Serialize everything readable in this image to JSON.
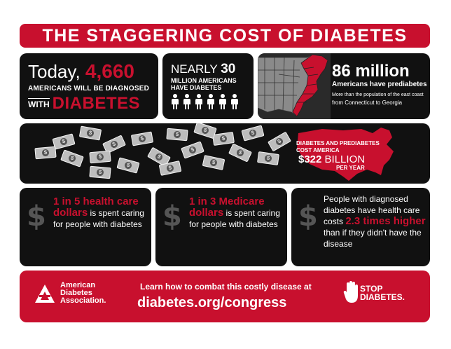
{
  "title": "THE STAGGERING COST OF DIABETES",
  "panel1": {
    "today": "Today,",
    "count": "4,660",
    "line2": "AMERICANS WILL BE DIAGNOSED",
    "with": "WITH",
    "diabetes": "DIABETES"
  },
  "panel2": {
    "nearly": "NEARLY",
    "count": "30",
    "line2": "MILLION AMERICANS HAVE DIABETES"
  },
  "panel3": {
    "headline": "86 million",
    "sub": "Americans have prediabetes",
    "note1": "More than the population of the east coast",
    "note2": "from Connecticut to Georgia"
  },
  "panel4": {
    "line1": "DIABETES AND PREDIABETES COST AMERICA",
    "amount": "$322",
    "billion": "BILLION",
    "per_year": "PER YEAR"
  },
  "stats": [
    {
      "highlight": "1 in 5 health care dollars",
      "text": " is spent caring for people with diabetes"
    },
    {
      "highlight": "1 in 3 Medicare dollars",
      "text": " is spent caring for people with diabetes"
    },
    {
      "pre": "People with diagnosed diabetes have health care costs ",
      "highlight": "2.3 times higher",
      "text": " than if they didn't have the disease"
    }
  ],
  "footer": {
    "org": "American Diabetes Association.",
    "learn": "Learn how to combat this costly disease at",
    "url": "diabetes.org/congress",
    "stop": "STOP",
    "diabetes": "DIABETES."
  },
  "colors": {
    "accent": "#c8102e",
    "panel": "#111111"
  }
}
